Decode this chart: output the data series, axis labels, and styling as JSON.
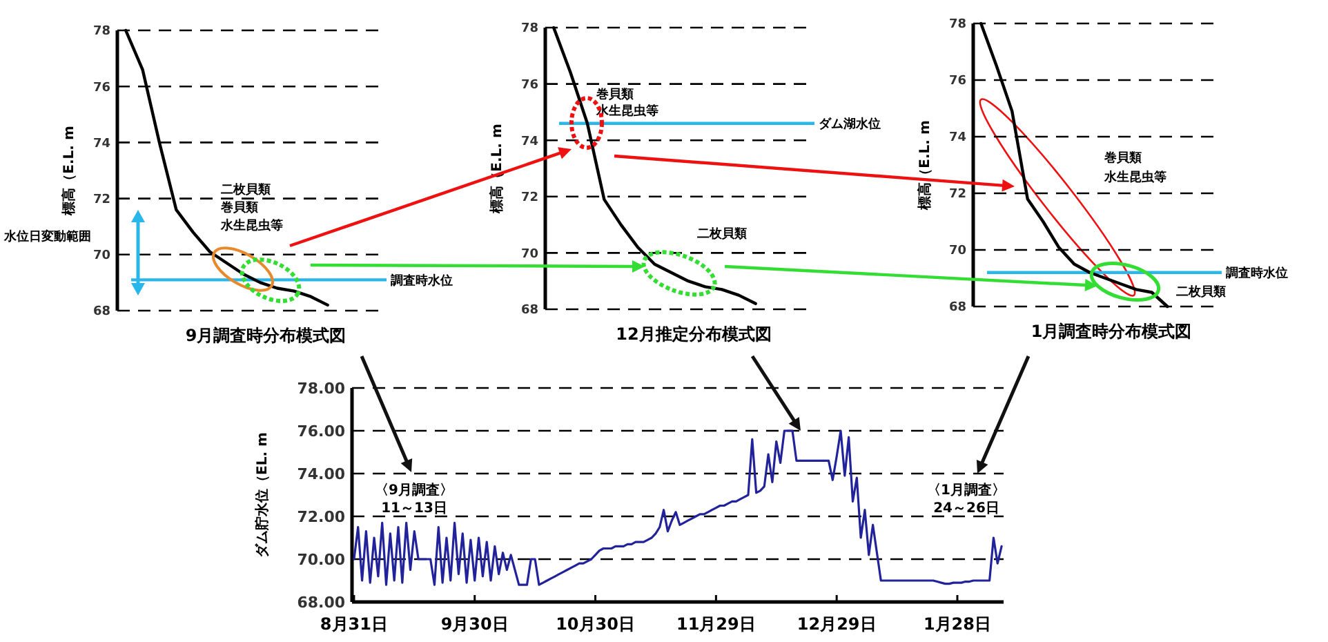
{
  "chart_data": [
    {
      "type": "line",
      "title": "9月調査時分布模式図",
      "ylabel": "標高（E.L. m",
      "categories": [
        null,
        null,
        null,
        null,
        null,
        null,
        null,
        null,
        null,
        null,
        null,
        null,
        null,
        null,
        null,
        null
      ],
      "series": [
        {
          "color": "#000000",
          "values": [
            78,
            76.6,
            74.0,
            71.6,
            70.8,
            70.1,
            69.7,
            69.3,
            69.0,
            68.8,
            68.7,
            68.5,
            68.2,
            null,
            null,
            null
          ]
        }
      ],
      "ylim": [
        68,
        78
      ],
      "yticks": [
        68,
        70,
        72,
        74,
        76,
        78
      ],
      "grid": "y",
      "line_style": "solid",
      "ref_lines": [
        {
          "axis": "y",
          "value": 69.1,
          "label": "調査時水位",
          "color": "#29b6e8"
        }
      ],
      "annotations": [
        "二枚貝類",
        "巻貝類",
        "水生昆虫等",
        "水位日変動範囲"
      ]
    },
    {
      "type": "line",
      "title": "12月推定分布模式図",
      "ylabel": "標高（E.L. m",
      "categories": [
        null,
        null,
        null,
        null,
        null,
        null,
        null,
        null,
        null,
        null,
        null,
        null,
        null,
        null,
        null,
        null
      ],
      "series": [
        {
          "color": "#000000",
          "values": [
            78,
            76.4,
            74.6,
            71.9,
            71.0,
            70.2,
            69.6,
            69.3,
            69.0,
            68.8,
            68.7,
            68.5,
            68.2,
            null,
            null,
            null
          ]
        }
      ],
      "ylim": [
        68,
        78
      ],
      "yticks": [
        68,
        70,
        72,
        74,
        76,
        78
      ],
      "grid": "y",
      "line_style": "solid",
      "ref_lines": [
        {
          "axis": "y",
          "value": 74.6,
          "label": "ダム湖水位",
          "color": "#29b6e8"
        }
      ],
      "annotations": [
        "巻貝類",
        "水生昆虫等",
        "二枚貝類"
      ]
    },
    {
      "type": "line",
      "title": "1月調査時分布模式図",
      "ylabel": "標高（E.L. m",
      "categories": [
        null,
        null,
        null,
        null,
        null,
        null,
        null,
        null,
        null,
        null,
        null,
        null,
        null,
        null,
        null,
        null
      ],
      "series": [
        {
          "color": "#000000",
          "values": [
            78,
            76.5,
            74.9,
            71.8,
            71.0,
            70.1,
            69.5,
            69.2,
            69.0,
            68.8,
            68.6,
            68.5,
            68.0,
            null,
            null,
            null
          ]
        }
      ],
      "ylim": [
        68,
        78
      ],
      "yticks": [
        68,
        70,
        72,
        74,
        76,
        78
      ],
      "grid": "y",
      "line_style": "solid",
      "ref_lines": [
        {
          "axis": "y",
          "value": 69.2,
          "label": "調査時水位",
          "color": "#29b6e8"
        }
      ],
      "annotations": [
        "巻貝類",
        "水生昆虫等",
        "二枚貝類"
      ]
    },
    {
      "type": "line",
      "ylabel": "ダム貯水位（EL. m",
      "categories": [
        "8月31日",
        null,
        null,
        null,
        null,
        null,
        null,
        null,
        null,
        null,
        null,
        null,
        null,
        null,
        null,
        null,
        null,
        null,
        null,
        null,
        null,
        null,
        null,
        null,
        null,
        null,
        null,
        null,
        null,
        null,
        "9月30日",
        null,
        null,
        null,
        null,
        null,
        null,
        null,
        null,
        null,
        null,
        null,
        null,
        null,
        null,
        null,
        null,
        null,
        null,
        null,
        null,
        null,
        null,
        null,
        null,
        null,
        null,
        null,
        null,
        null,
        "10月30日",
        null,
        null,
        null,
        null,
        null,
        null,
        null,
        null,
        null,
        null,
        null,
        null,
        null,
        null,
        null,
        null,
        null,
        null,
        null,
        null,
        null,
        null,
        null,
        null,
        null,
        null,
        null,
        null,
        null,
        "11月29日",
        null,
        null,
        null,
        null,
        null,
        null,
        null,
        null,
        null,
        null,
        null,
        null,
        null,
        null,
        null,
        null,
        null,
        null,
        null,
        null,
        null,
        null,
        null,
        null,
        null,
        null,
        null,
        null,
        null,
        "12月29日",
        null,
        null,
        null,
        null,
        null,
        null,
        null,
        null,
        null,
        null,
        null,
        null,
        null,
        null,
        null,
        null,
        null,
        null,
        null,
        null,
        null,
        null,
        null,
        null,
        null,
        null,
        null,
        null,
        null,
        "1月28日",
        null,
        null,
        null,
        null,
        null,
        null,
        null,
        null,
        null,
        null,
        null
      ],
      "series": [
        {
          "color": "#22229a",
          "values": [
            70,
            71.5,
            69,
            71.3,
            68.9,
            71,
            69.2,
            71.7,
            68.8,
            71.2,
            69,
            71.5,
            68.9,
            71.7,
            69.5,
            71.3,
            70,
            70,
            70,
            70,
            68.8,
            71.5,
            68.9,
            71,
            69,
            71.7,
            69.3,
            71.2,
            68.9,
            70.9,
            69,
            71,
            69.2,
            70.8,
            69,
            70.6,
            69.3,
            70.3,
            69.5,
            70.2,
            69.5,
            68.8,
            68.8,
            68.8,
            70,
            70,
            68.8,
            68.9,
            69.0,
            69.1,
            69.2,
            69.3,
            69.4,
            69.5,
            69.6,
            69.7,
            69.8,
            69.8,
            69.9,
            70.0,
            70.2,
            70.4,
            70.5,
            70.5,
            70.5,
            70.6,
            70.6,
            70.6,
            70.7,
            70.7,
            70.8,
            70.8,
            70.8,
            70.9,
            71.0,
            71.2,
            71.5,
            72.3,
            71.3,
            71.8,
            72.2,
            71.6,
            71.7,
            71.8,
            71.9,
            72.0,
            72.1,
            72.1,
            72.2,
            72.3,
            72.4,
            72.5,
            72.5,
            72.6,
            72.7,
            72.7,
            72.8,
            72.9,
            73.0,
            75.6,
            73.1,
            73.2,
            73.4,
            74.9,
            73.6,
            75.5,
            74.5,
            76,
            76,
            76,
            74.6,
            74.6,
            74.6,
            74.6,
            74.6,
            74.6,
            74.6,
            74.6,
            74.6,
            73.7,
            74.8,
            76,
            73.9,
            75.7,
            72.7,
            73.8,
            71,
            72.3,
            70.2,
            71.6,
            70.3,
            69.0,
            69.0,
            69.0,
            69.0,
            69.0,
            69.0,
            69.0,
            69.0,
            69.0,
            69.0,
            69.0,
            69.0,
            69.0,
            69.0,
            68.95,
            68.9,
            68.85,
            68.85,
            68.9,
            68.9,
            68.9,
            68.95,
            68.95,
            69.0,
            69.0,
            69.0,
            69.0,
            69.0,
            71.0,
            69.8,
            70.6
          ]
        }
      ],
      "ylim": [
        68,
        78
      ],
      "yticks": [
        {
          "value": 68,
          "label": "68.00"
        },
        {
          "value": 70,
          "label": "70.00"
        },
        {
          "value": 72,
          "label": "72.00"
        },
        {
          "value": 74,
          "label": "74.00"
        },
        {
          "value": 76,
          "label": "76.00"
        },
        {
          "value": 78,
          "label": "78.00"
        }
      ],
      "grid": "y",
      "line_style": "solid",
      "annotations": [
        "〈9月調査〉",
        "11～13日",
        "〈1月調査〉",
        "24～26日"
      ]
    }
  ]
}
